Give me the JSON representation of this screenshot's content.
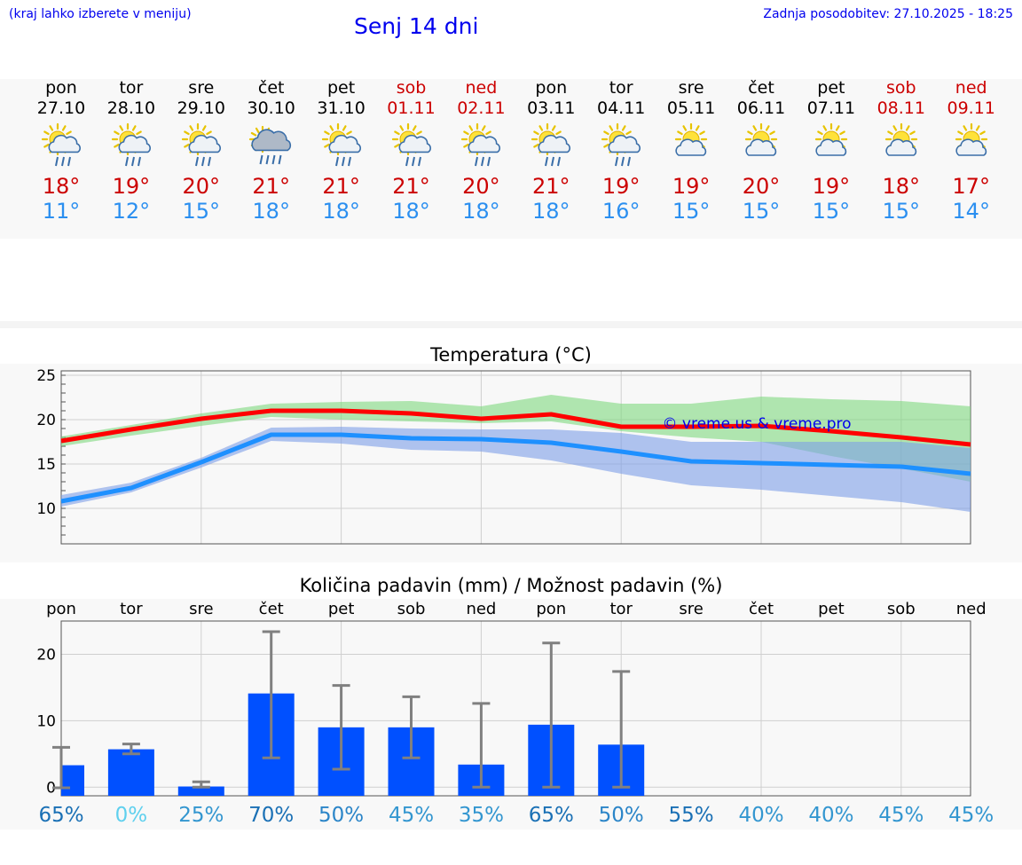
{
  "header": {
    "hint": "(kraj lahko izberete v meniju)",
    "title": "Senj 14 dni",
    "updated": "Zadnja posodobitev: 27.10.2025 - 18:25"
  },
  "days": [
    {
      "name": "pon",
      "date": "27.10",
      "weekend": false,
      "icon": "sun-cloud-rain-icon",
      "hi": "18°",
      "lo": "11°"
    },
    {
      "name": "tor",
      "date": "28.10",
      "weekend": false,
      "icon": "sun-cloud-rain-icon",
      "hi": "19°",
      "lo": "12°"
    },
    {
      "name": "sre",
      "date": "29.10",
      "weekend": false,
      "icon": "sun-cloud-rain-icon",
      "hi": "20°",
      "lo": "15°"
    },
    {
      "name": "čet",
      "date": "30.10",
      "weekend": false,
      "icon": "heavy-rain-icon",
      "hi": "21°",
      "lo": "18°"
    },
    {
      "name": "pet",
      "date": "31.10",
      "weekend": false,
      "icon": "sun-cloud-rain-icon",
      "hi": "21°",
      "lo": "18°"
    },
    {
      "name": "sob",
      "date": "01.11",
      "weekend": true,
      "icon": "sun-cloud-rain-icon",
      "hi": "21°",
      "lo": "18°"
    },
    {
      "name": "ned",
      "date": "02.11",
      "weekend": true,
      "icon": "sun-cloud-rain-icon",
      "hi": "20°",
      "lo": "18°"
    },
    {
      "name": "pon",
      "date": "03.11",
      "weekend": false,
      "icon": "sun-cloud-rain-icon",
      "hi": "21°",
      "lo": "18°"
    },
    {
      "name": "tor",
      "date": "04.11",
      "weekend": false,
      "icon": "sun-cloud-rain-icon",
      "hi": "19°",
      "lo": "16°"
    },
    {
      "name": "sre",
      "date": "05.11",
      "weekend": false,
      "icon": "partly-cloudy-icon",
      "hi": "19°",
      "lo": "15°"
    },
    {
      "name": "čet",
      "date": "06.11",
      "weekend": false,
      "icon": "partly-cloudy-icon",
      "hi": "20°",
      "lo": "15°"
    },
    {
      "name": "pet",
      "date": "07.11",
      "weekend": false,
      "icon": "partly-cloudy-icon",
      "hi": "19°",
      "lo": "15°"
    },
    {
      "name": "sob",
      "date": "08.11",
      "weekend": true,
      "icon": "partly-cloudy-icon",
      "hi": "18°",
      "lo": "15°"
    },
    {
      "name": "ned",
      "date": "09.11",
      "weekend": true,
      "icon": "partly-cloudy-icon",
      "hi": "17°",
      "lo": "14°"
    }
  ],
  "colors": {
    "max": "#ff0000",
    "min": "#1e90ff",
    "band_max": "#7ed87e",
    "band_min": "#7d9fe8",
    "bar": "#0050ff",
    "whisker": "#808080"
  },
  "chart_data": [
    {
      "type": "line",
      "title": "Temperatura (°C)",
      "watermark": "© vreme.us & vreme.pro",
      "ylim": [
        6,
        25.5
      ],
      "yticks": [
        10,
        15,
        20,
        25
      ],
      "x": [
        0,
        1,
        2,
        3,
        4,
        5,
        6,
        7,
        8,
        9,
        10,
        11,
        12,
        13
      ],
      "series": [
        {
          "name": "max",
          "values": [
            17.6,
            18.9,
            20.1,
            21.0,
            21.0,
            20.7,
            20.1,
            20.6,
            19.2,
            19.2,
            19.3,
            18.7,
            18.0,
            17.2
          ],
          "band": [
            [
              17.0,
              18.1
            ],
            [
              18.2,
              19.4
            ],
            [
              19.3,
              20.7
            ],
            [
              20.3,
              21.8
            ],
            [
              20.0,
              22.0
            ],
            [
              19.8,
              22.1
            ],
            [
              19.6,
              21.5
            ],
            [
              19.8,
              22.8
            ],
            [
              18.7,
              21.8
            ],
            [
              18.0,
              21.8
            ],
            [
              17.5,
              22.6
            ],
            [
              15.9,
              22.3
            ],
            [
              14.5,
              22.1
            ],
            [
              13.0,
              21.5
            ]
          ]
        },
        {
          "name": "min",
          "values": [
            10.8,
            12.3,
            15.2,
            18.3,
            18.3,
            17.9,
            17.8,
            17.4,
            16.4,
            15.3,
            15.1,
            14.9,
            14.7,
            13.9
          ],
          "band": [
            [
              10.2,
              11.5
            ],
            [
              11.8,
              12.9
            ],
            [
              14.6,
              15.7
            ],
            [
              17.6,
              19.1
            ],
            [
              17.3,
              19.2
            ],
            [
              16.6,
              19.0
            ],
            [
              16.4,
              18.9
            ],
            [
              15.4,
              18.9
            ],
            [
              13.9,
              18.5
            ],
            [
              12.6,
              17.5
            ],
            [
              12.1,
              17.5
            ],
            [
              11.4,
              17.5
            ],
            [
              10.7,
              17.5
            ],
            [
              9.6,
              16.8
            ]
          ]
        }
      ]
    },
    {
      "type": "bar",
      "title": "Količina padavin (mm) / Možnost padavin (%)",
      "categories": [
        "pon",
        "tor",
        "sre",
        "čet",
        "pet",
        "sob",
        "ned",
        "pon",
        "tor",
        "sre",
        "čet",
        "pet",
        "sob",
        "ned"
      ],
      "ylim": [
        -1.3,
        25
      ],
      "yticks": [
        0,
        10,
        20
      ],
      "values": [
        3.3,
        5.7,
        0.1,
        14.1,
        9.0,
        9.0,
        3.4,
        9.4,
        6.4,
        0,
        0,
        0,
        0,
        0
      ],
      "error_low": [
        -0.1,
        5.0,
        0.0,
        4.4,
        2.7,
        4.4,
        0.0,
        0.0,
        0.0,
        0,
        0,
        0,
        0,
        0
      ],
      "error_high": [
        6.0,
        6.5,
        0.8,
        23.4,
        15.3,
        13.6,
        12.6,
        21.7,
        17.4,
        0,
        0,
        0,
        0,
        0
      ],
      "probability": [
        "65%",
        "0%",
        "25%",
        "70%",
        "50%",
        "45%",
        "35%",
        "65%",
        "50%",
        "55%",
        "40%",
        "40%",
        "45%",
        "45%"
      ],
      "probability_colors": [
        "#1a70b5",
        "#5fd0ee",
        "#3396d0",
        "#1a70b5",
        "#2b85c8",
        "#3396d0",
        "#3396d0",
        "#1a70b5",
        "#2b85c8",
        "#1a70b5",
        "#3396d0",
        "#3396d0",
        "#3396d0",
        "#3396d0"
      ]
    }
  ]
}
